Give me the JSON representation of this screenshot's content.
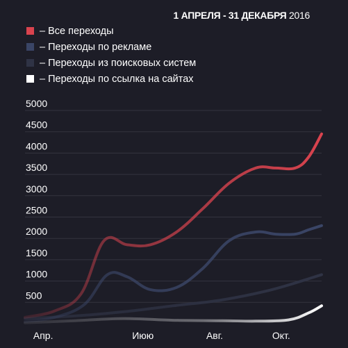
{
  "header": {
    "date_range_bold": "1 АПРЕЛЯ - 31 ДЕКАБРЯ",
    "date_range_year": "2016"
  },
  "legend": [
    {
      "label": "– Все переходы",
      "color": "#d9434e"
    },
    {
      "label": "– Переходы по рекламе",
      "color": "#3a4566"
    },
    {
      "label": "– Переходы из поисковых систем",
      "color": "#2f3345"
    },
    {
      "label": "– Переходы по ссылка на сайтах",
      "color": "#ffffff"
    }
  ],
  "chart_data": {
    "type": "line",
    "title": "",
    "xlabel": "",
    "ylabel": "",
    "x_ticks": [
      "Апр.",
      "Июю",
      "Авг.",
      "Окт."
    ],
    "x_range": [
      0,
      9
    ],
    "x_tick_positions": [
      0.25,
      3.25,
      5.5,
      7.5
    ],
    "y_ticks": [
      "500",
      "1000",
      "1500",
      "2000",
      "2500",
      "3000",
      "3500",
      "4000",
      "4500",
      "5000"
    ],
    "ylim": [
      0,
      5000
    ],
    "grid": true,
    "series": [
      {
        "name": "Все переходы",
        "color": "#d9434e",
        "x": [
          0,
          0.9,
          1.7,
          2.4,
          3.1,
          3.8,
          4.6,
          5.4,
          6.2,
          7.0,
          7.6,
          8.2,
          8.6,
          9.0
        ],
        "values": [
          150,
          300,
          700,
          1950,
          1850,
          1850,
          2150,
          2700,
          3300,
          3650,
          3650,
          3650,
          3900,
          4450
        ]
      },
      {
        "name": "Переходы по рекламе",
        "color": "#3a4566",
        "x": [
          0,
          0.9,
          1.8,
          2.5,
          3.1,
          3.8,
          4.6,
          5.4,
          6.2,
          7.0,
          7.6,
          8.2,
          8.6,
          9.0
        ],
        "values": [
          50,
          150,
          450,
          1150,
          1100,
          800,
          850,
          1300,
          1950,
          2150,
          2100,
          2100,
          2200,
          2300
        ]
      },
      {
        "name": "Переходы из поисковых систем",
        "color": "#2f3345",
        "x": [
          0,
          1.5,
          3.0,
          4.5,
          6.0,
          7.5,
          9.0
        ],
        "values": [
          120,
          180,
          280,
          420,
          560,
          800,
          1150
        ]
      },
      {
        "name": "Переходы по ссылка на сайтах",
        "color": "#ffffff",
        "x": [
          0,
          1.5,
          3.0,
          4.5,
          6.0,
          7.0,
          8.0,
          8.6,
          9.0
        ],
        "values": [
          20,
          70,
          120,
          80,
          70,
          60,
          90,
          250,
          420
        ]
      }
    ]
  }
}
